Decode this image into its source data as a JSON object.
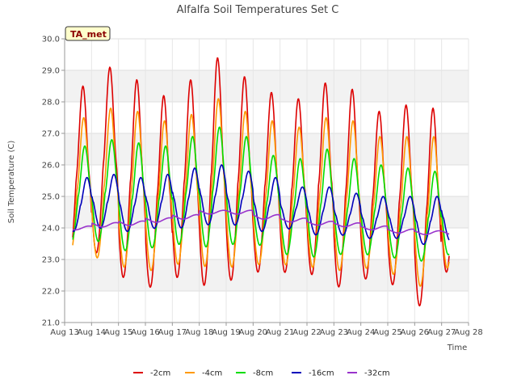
{
  "chart_data": {
    "type": "line",
    "title": "Alfalfa Soil Temperatures Set C",
    "xlabel": "Time",
    "ylabel": "Soil Temperature (C)",
    "badge": "TA_met",
    "xlim": [
      13,
      28
    ],
    "ylim": [
      21.0,
      30.0
    ],
    "x_ticks": [
      "Aug 13",
      "Aug 14",
      "Aug 15",
      "Aug 16",
      "Aug 17",
      "Aug 18",
      "Aug 19",
      "Aug 20",
      "Aug 21",
      "Aug 22",
      "Aug 23",
      "Aug 24",
      "Aug 25",
      "Aug 26",
      "Aug 27",
      "Aug 28"
    ],
    "y_ticks": [
      "21.0",
      "22.0",
      "23.0",
      "24.0",
      "25.0",
      "26.0",
      "27.0",
      "28.0",
      "29.0",
      "30.0"
    ],
    "legend_position": "bottom",
    "grid": "horizontal bands",
    "series": [
      {
        "name": "-2cm",
        "color": "#dd0000",
        "mean": [
          25.6,
          26.0,
          25.4,
          25.0,
          25.4,
          25.6,
          25.4,
          25.3,
          25.2,
          25.4,
          25.1,
          24.9,
          24.9,
          24.5,
          25.3
        ],
        "amp": [
          2.9,
          3.1,
          3.3,
          3.2,
          3.3,
          3.8,
          3.4,
          3.0,
          2.9,
          3.2,
          3.3,
          2.8,
          3.0,
          3.3,
          3.0
        ]
      },
      {
        "name": "-4cm",
        "color": "#ff9900",
        "mean": [
          25.2,
          25.3,
          25.1,
          24.9,
          25.1,
          25.3,
          25.1,
          25.0,
          24.9,
          25.0,
          24.9,
          24.7,
          24.6,
          24.4,
          24.8
        ],
        "amp": [
          2.3,
          2.5,
          2.6,
          2.5,
          2.5,
          2.8,
          2.6,
          2.4,
          2.3,
          2.5,
          2.5,
          2.2,
          2.3,
          2.5,
          2.3
        ]
      },
      {
        "name": "-8cm",
        "color": "#00dd00",
        "mean": [
          25.0,
          25.1,
          24.9,
          24.9,
          25.1,
          25.2,
          25.1,
          24.8,
          24.6,
          24.7,
          24.6,
          24.5,
          24.4,
          24.3,
          24.5
        ],
        "amp": [
          1.6,
          1.7,
          1.8,
          1.7,
          1.8,
          2.0,
          1.8,
          1.5,
          1.6,
          1.8,
          1.6,
          1.5,
          1.5,
          1.5,
          1.5
        ]
      },
      {
        "name": "-16cm",
        "color": "#0000bb",
        "mean": [
          24.7,
          24.8,
          24.7,
          24.8,
          24.9,
          25.0,
          24.9,
          24.7,
          24.6,
          24.5,
          24.4,
          24.3,
          24.3,
          24.2,
          24.3
        ],
        "amp": [
          0.9,
          0.9,
          0.9,
          0.9,
          1.0,
          1.0,
          0.9,
          0.9,
          0.7,
          0.8,
          0.7,
          0.7,
          0.7,
          0.8,
          0.8
        ]
      },
      {
        "name": "-32cm",
        "color": "#9933cc",
        "mean": [
          24.0,
          24.1,
          24.15,
          24.25,
          24.35,
          24.5,
          24.5,
          24.35,
          24.25,
          24.15,
          24.1,
          24.0,
          23.9,
          23.85,
          23.85
        ],
        "amp": [
          0.06,
          0.07,
          0.07,
          0.07,
          0.07,
          0.06,
          0.06,
          0.07,
          0.06,
          0.06,
          0.06,
          0.06,
          0.06,
          0.06,
          0.06
        ]
      }
    ]
  }
}
